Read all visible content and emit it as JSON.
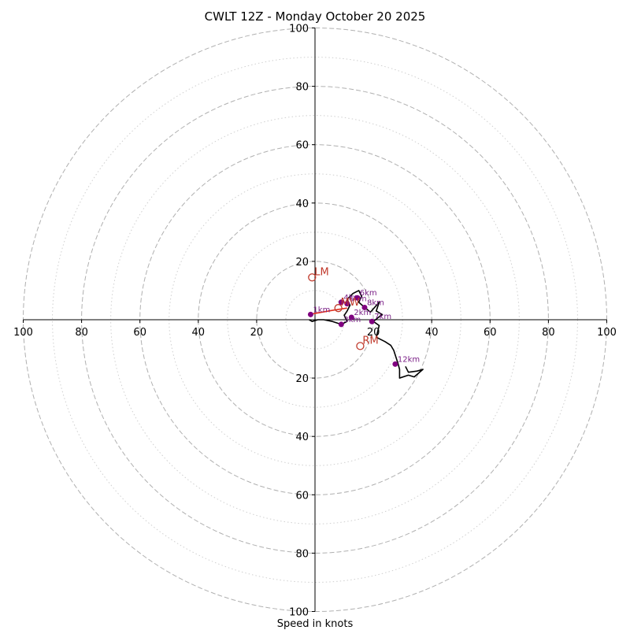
{
  "chart_data": {
    "type": "hodograph",
    "title": "CWLT 12Z - Monday October 20 2025",
    "xlabel": "Speed in knots",
    "xlim": [
      -100,
      100
    ],
    "ylim": [
      -100,
      100
    ],
    "ring_major": [
      20,
      40,
      60,
      80,
      100
    ],
    "ring_minor": [
      10,
      30,
      50,
      70,
      90
    ],
    "x_ticks": [
      {
        "value": -100,
        "label": "100"
      },
      {
        "value": -80,
        "label": "80"
      },
      {
        "value": -60,
        "label": "60"
      },
      {
        "value": -40,
        "label": "40"
      },
      {
        "value": -20,
        "label": "20"
      },
      {
        "value": 20,
        "label": "20"
      },
      {
        "value": 40,
        "label": "40"
      },
      {
        "value": 60,
        "label": "60"
      },
      {
        "value": 80,
        "label": "80"
      },
      {
        "value": 100,
        "label": "100"
      }
    ],
    "y_ticks": [
      {
        "value": 100,
        "label": "100"
      },
      {
        "value": 80,
        "label": "80"
      },
      {
        "value": 60,
        "label": "60"
      },
      {
        "value": 40,
        "label": "40"
      },
      {
        "value": 20,
        "label": "20"
      },
      {
        "value": -20,
        "label": "20"
      },
      {
        "value": -40,
        "label": "40"
      },
      {
        "value": -60,
        "label": "60"
      },
      {
        "value": -80,
        "label": "80"
      },
      {
        "value": -100,
        "label": "100"
      }
    ],
    "profile_low": [
      [
        -2,
        1.8
      ],
      [
        6,
        3.2
      ],
      [
        11,
        4
      ]
    ],
    "profile": [
      [
        -2,
        0
      ],
      [
        -1,
        -0.6
      ],
      [
        1,
        0
      ],
      [
        3,
        0
      ],
      [
        6,
        -0.6
      ],
      [
        9,
        -1.6
      ],
      [
        11,
        -0.6
      ],
      [
        10,
        1.5
      ],
      [
        11,
        3
      ],
      [
        12,
        5
      ],
      [
        11,
        7
      ],
      [
        13,
        9
      ],
      [
        15,
        10
      ],
      [
        16,
        8
      ],
      [
        15,
        6
      ],
      [
        17,
        4.2
      ],
      [
        19,
        2.6
      ],
      [
        22,
        6
      ],
      [
        21,
        3
      ],
      [
        23,
        1.8
      ],
      [
        20,
        -0.6
      ],
      [
        22,
        -2
      ],
      [
        21,
        -6
      ],
      [
        24,
        -7.5
      ],
      [
        26,
        -8.8
      ],
      [
        27,
        -10.5
      ],
      [
        28.5,
        -15.2
      ],
      [
        29,
        -17
      ],
      [
        29,
        -20
      ],
      [
        32,
        -19
      ],
      [
        34,
        -19.6
      ],
      [
        37,
        -17
      ],
      [
        35,
        -17.6
      ],
      [
        32,
        -18
      ],
      [
        31,
        -16
      ]
    ],
    "height_markers": [
      {
        "label": "1km",
        "u": -1.5,
        "v": 1.8
      },
      {
        "label": "2km",
        "u": 12.5,
        "v": 0.8
      },
      {
        "label": "3km",
        "u": 9,
        "v": -1.6
      },
      {
        "label": "4km",
        "u": 9,
        "v": 6
      },
      {
        "label": "5km",
        "u": 11,
        "v": 5.5
      },
      {
        "label": "6km",
        "u": 14.5,
        "v": 7.5
      },
      {
        "label": "7km",
        "u": 19.5,
        "v": -0.6
      },
      {
        "label": "8km",
        "u": 17,
        "v": 4.2
      },
      {
        "label": "12km",
        "u": 27.5,
        "v": -15.2
      }
    ],
    "motions": [
      {
        "label": "LM",
        "u": -1,
        "v": 14.5
      },
      {
        "label": "RM",
        "u": 15.5,
        "v": -9
      },
      {
        "label": "MW",
        "u": 8,
        "v": 4
      }
    ],
    "colors": {
      "profile": "#000000",
      "low_layer": "#e0301e",
      "markers": "#800080",
      "motions": "#c0392b",
      "grid": "#b0b0b0",
      "axes": "#000000"
    }
  }
}
